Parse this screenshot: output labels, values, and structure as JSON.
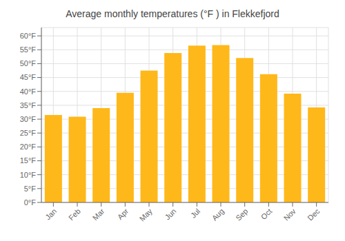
{
  "chart_data": {
    "type": "bar",
    "title": "Average monthly temperatures (°F ) in Flekkefjord",
    "categories": [
      "Jan",
      "Feb",
      "Mar",
      "Apr",
      "May",
      "Jun",
      "Jul",
      "Aug",
      "Sep",
      "Oct",
      "Nov",
      "Dec"
    ],
    "values": [
      31.5,
      30.9,
      34.0,
      39.5,
      47.5,
      53.8,
      56.5,
      56.7,
      52.0,
      46.2,
      39.2,
      34.2
    ],
    "color": "#FFB81A",
    "ylim": [
      0,
      63
    ],
    "yticks": [
      {
        "value": 0,
        "label": "0°F"
      },
      {
        "value": 5,
        "label": "5°F"
      },
      {
        "value": 10,
        "label": "10°F"
      },
      {
        "value": 15,
        "label": "15°F"
      },
      {
        "value": 20,
        "label": "20°F"
      },
      {
        "value": 25,
        "label": "25°F"
      },
      {
        "value": 30,
        "label": "30°F"
      },
      {
        "value": 35,
        "label": "35°F"
      },
      {
        "value": 40,
        "label": "40°F"
      },
      {
        "value": 45,
        "label": "45°F"
      },
      {
        "value": 50,
        "label": "50°F"
      },
      {
        "value": 55,
        "label": "55°F"
      },
      {
        "value": 60,
        "label": "60°F"
      }
    ],
    "grid": true
  }
}
